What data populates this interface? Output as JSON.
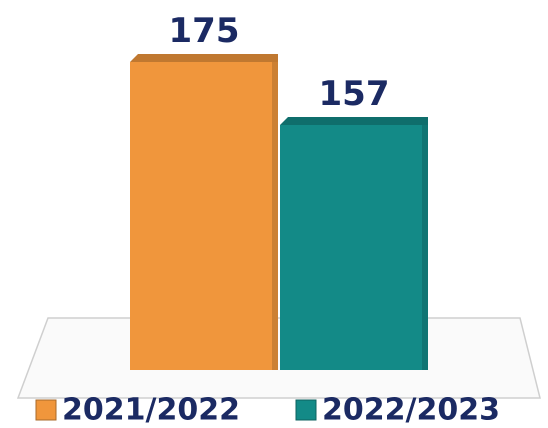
{
  "chart_data": {
    "type": "bar",
    "categories": [
      null
    ],
    "series": [
      {
        "name": "2021/2022",
        "color": "#f0963c",
        "values": [
          175
        ]
      },
      {
        "name": "2022/2023",
        "color": "#138a87",
        "values": [
          157
        ]
      }
    ],
    "ylim": [
      87,
      175
    ]
  }
}
